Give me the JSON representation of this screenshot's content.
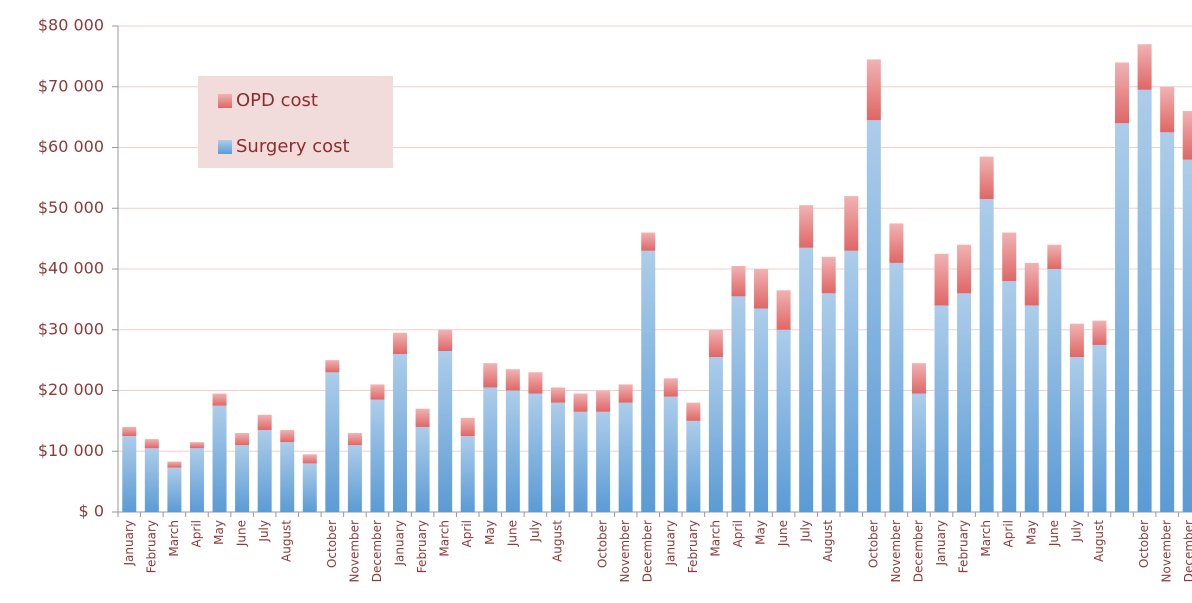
{
  "chart_data": {
    "type": "stacked_bar",
    "categories": [
      "January",
      "February",
      "March",
      "April",
      "May",
      "June",
      "July",
      "August",
      null,
      "October",
      "November",
      "December",
      "January",
      "February",
      "March",
      "April",
      "May",
      "June",
      "July",
      "August",
      null,
      "October",
      "November",
      "December",
      "January",
      "February",
      "March",
      "April",
      "May",
      "June",
      "July",
      "August",
      null,
      "October",
      "November",
      "December",
      "January",
      "February",
      "March",
      "April",
      "May",
      "June",
      "July",
      "August",
      null,
      "October",
      "November",
      "December"
    ],
    "series": [
      {
        "name": "Surgery cost",
        "color": "#5b9bd5",
        "values": [
          12500,
          10500,
          7300,
          10500,
          17500,
          11000,
          13500,
          11500,
          8000,
          23000,
          11000,
          18500,
          26000,
          14000,
          26500,
          12500,
          20500,
          20000,
          19500,
          18000,
          16500,
          16500,
          18000,
          43000,
          19000,
          15000,
          25500,
          35500,
          33500,
          30000,
          43500,
          36000,
          43000,
          64500,
          41000,
          19500,
          34000,
          36000,
          51500,
          38000,
          34000,
          40000,
          25500,
          27500,
          64000,
          69500,
          62500,
          58000
        ]
      },
      {
        "name": "OPD cost",
        "color": "#e06666",
        "values": [
          1500,
          1500,
          1000,
          1000,
          2000,
          2000,
          2500,
          2000,
          1500,
          2000,
          2000,
          2500,
          3500,
          3000,
          3500,
          3000,
          4000,
          3500,
          3500,
          2500,
          3000,
          3500,
          3000,
          3000,
          3000,
          3000,
          4500,
          5000,
          6500,
          6500,
          7000,
          6000,
          9000,
          10000,
          6500,
          5000,
          8500,
          8000,
          7000,
          8000,
          7000,
          4000,
          5500,
          4000,
          10000,
          7500,
          7500,
          8000
        ]
      }
    ],
    "ylim": [
      0,
      80000
    ],
    "yticks": [
      {
        "value": 0,
        "label": "$ 0"
      },
      {
        "value": 10000,
        "label": "$10 000"
      },
      {
        "value": 20000,
        "label": "$20 000"
      },
      {
        "value": 30000,
        "label": "$30 000"
      },
      {
        "value": 40000,
        "label": "$40 000"
      },
      {
        "value": 50000,
        "label": "$50 000"
      },
      {
        "value": 60000,
        "label": "$60 000"
      },
      {
        "value": 70000,
        "label": "$70 000"
      },
      {
        "value": 80000,
        "label": "$80 000"
      }
    ],
    "grid": true,
    "legend": "upper left"
  }
}
